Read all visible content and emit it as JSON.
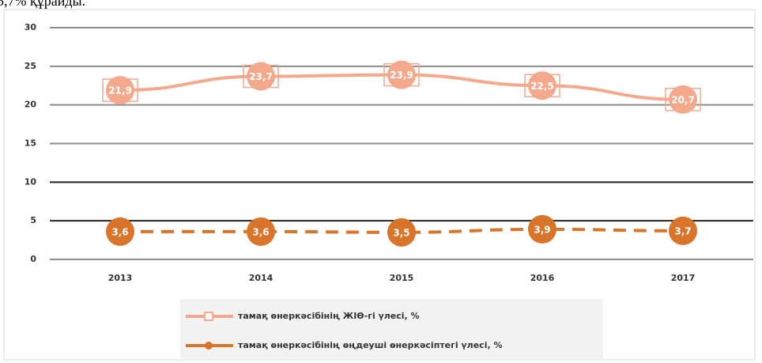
{
  "note": "5,7% құрайды.",
  "chart_data": {
    "type": "line",
    "categories": [
      "2013",
      "2014",
      "2015",
      "2016",
      "2017"
    ],
    "series": [
      {
        "name": "тамақ өнеркәсібінің ЖІӨ-гі үлесі, %",
        "color": "#f4a98c",
        "line_style": "solid",
        "values": [
          21.9,
          23.7,
          23.9,
          22.5,
          20.7
        ],
        "value_labels": [
          "21,9",
          "23,7",
          "23,9",
          "22,5",
          "20,7"
        ]
      },
      {
        "name": "тамақ өнеркәсібінің өңдеуші өнеркәсіптегі үлесі, %",
        "color": "#d9742b",
        "line_style": "dashed",
        "values": [
          3.6,
          3.6,
          3.5,
          3.9,
          3.7
        ],
        "value_labels": [
          "3,6",
          "3,6",
          "3,5",
          "3,9",
          "3,7"
        ]
      }
    ],
    "ylim": [
      0,
      30
    ],
    "yticks": [
      0,
      5,
      10,
      15,
      20,
      25,
      30
    ],
    "grid": true,
    "legend": "bottom"
  }
}
